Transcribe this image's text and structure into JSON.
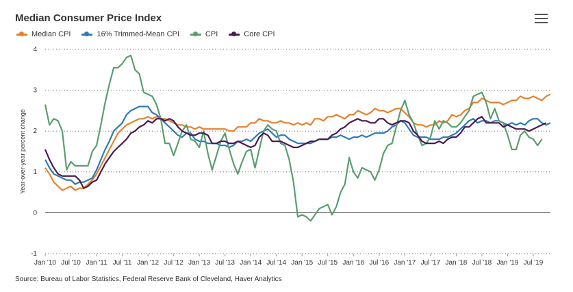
{
  "header": {
    "title": "Median Consumer Price Index"
  },
  "menu_icon": "hamburger-menu-icon",
  "source": "Source: Bureau of Labor Statistics, Federal Reserve Bank of Cleveland, Haver Analytics",
  "chart_data": {
    "type": "line",
    "title": "Median Consumer Price Index",
    "xlabel": "",
    "ylabel": "Year-over-year percent change",
    "ylim": [
      -1,
      4
    ],
    "yticks": [
      -1,
      0,
      1,
      2,
      3,
      4
    ],
    "xtick_labels": [
      "Jan '10",
      "Jul '10",
      "Jan '11",
      "Jul '11",
      "Jan '12",
      "Jul '12",
      "Jan '13",
      "Jul '13",
      "Jan '14",
      "Jul '14",
      "Jan '15",
      "Jul '15",
      "Jan '16",
      "Jul '16",
      "Jan '17",
      "Jul '17",
      "Jan '18",
      "Jul '18",
      "Jan '19",
      "Jul '19"
    ],
    "x_start": "2010-01",
    "grid": "horizontal-dotted",
    "legend_position": "top-left",
    "series": [
      {
        "name": "Median CPI",
        "color": "#e8802a",
        "values": [
          1.1,
          0.95,
          0.75,
          0.65,
          0.55,
          0.6,
          0.65,
          0.55,
          0.6,
          0.6,
          0.7,
          0.8,
          0.95,
          1.15,
          1.35,
          1.55,
          1.75,
          1.95,
          2.05,
          2.15,
          2.2,
          2.25,
          2.3,
          2.3,
          2.35,
          2.3,
          2.35,
          2.3,
          2.3,
          2.25,
          2.2,
          2.15,
          2.15,
          2.1,
          2.1,
          2.05,
          2.1,
          2.05,
          2.05,
          2.05,
          2.05,
          2.05,
          2.05,
          2.0,
          2.0,
          2.1,
          2.1,
          2.1,
          2.2,
          2.2,
          2.3,
          2.25,
          2.25,
          2.2,
          2.2,
          2.25,
          2.2,
          2.2,
          2.15,
          2.2,
          2.15,
          2.2,
          2.15,
          2.3,
          2.3,
          2.25,
          2.35,
          2.35,
          2.4,
          2.35,
          2.3,
          2.4,
          2.4,
          2.5,
          2.45,
          2.4,
          2.45,
          2.55,
          2.5,
          2.5,
          2.45,
          2.5,
          2.55,
          2.55,
          2.45,
          2.35,
          2.2,
          2.15,
          2.15,
          2.1,
          2.15,
          2.15,
          2.25,
          2.2,
          2.25,
          2.4,
          2.35,
          2.4,
          2.5,
          2.55,
          2.7,
          2.7,
          2.8,
          2.75,
          2.7,
          2.7,
          2.7,
          2.65,
          2.7,
          2.75,
          2.75,
          2.85,
          2.8,
          2.8,
          2.85,
          2.8,
          2.75,
          2.85,
          2.9
        ]
      },
      {
        "name": "16% Trimmed-Mean CPI",
        "color": "#2b7bb9",
        "values": [
          1.3,
          1.1,
          0.95,
          0.9,
          0.85,
          0.8,
          0.8,
          0.7,
          0.75,
          0.75,
          0.8,
          0.85,
          1.05,
          1.3,
          1.55,
          1.75,
          2.0,
          2.1,
          2.2,
          2.4,
          2.5,
          2.55,
          2.6,
          2.6,
          2.6,
          2.45,
          2.4,
          2.3,
          2.2,
          2.1,
          2.0,
          1.9,
          1.85,
          1.95,
          1.95,
          1.8,
          1.75,
          1.75,
          1.7,
          1.7,
          1.7,
          1.65,
          1.65,
          1.6,
          1.65,
          1.75,
          1.75,
          1.8,
          1.75,
          1.85,
          1.95,
          2.0,
          2.05,
          1.95,
          1.85,
          1.9,
          1.9,
          1.8,
          1.75,
          1.7,
          1.7,
          1.7,
          1.7,
          1.75,
          1.8,
          1.8,
          1.8,
          1.85,
          1.85,
          1.9,
          1.85,
          1.8,
          1.85,
          1.85,
          1.9,
          1.85,
          1.9,
          1.95,
          1.95,
          1.95,
          2.0,
          2.1,
          2.15,
          2.25,
          2.2,
          2.05,
          1.9,
          1.85,
          1.85,
          1.85,
          1.8,
          1.8,
          1.8,
          1.85,
          1.85,
          1.9,
          1.95,
          2.05,
          2.15,
          2.25,
          2.3,
          2.2,
          2.25,
          2.25,
          2.2,
          2.25,
          2.25,
          2.2,
          2.15,
          2.2,
          2.15,
          2.2,
          2.15,
          2.25,
          2.3,
          2.3,
          2.2,
          2.15,
          2.2
        ]
      },
      {
        "name": "CPI",
        "color": "#5a9e6f",
        "values": [
          2.65,
          2.15,
          2.3,
          2.25,
          2.0,
          1.05,
          1.25,
          1.15,
          1.15,
          1.15,
          1.15,
          1.5,
          1.65,
          2.15,
          2.7,
          3.15,
          3.55,
          3.55,
          3.65,
          3.8,
          3.85,
          3.5,
          3.4,
          2.95,
          2.9,
          2.85,
          2.65,
          2.3,
          1.7,
          1.7,
          1.4,
          1.7,
          2.0,
          2.15,
          1.8,
          1.75,
          1.6,
          2.0,
          1.45,
          1.05,
          1.4,
          1.75,
          1.95,
          1.55,
          1.2,
          0.95,
          1.25,
          1.5,
          1.55,
          1.1,
          1.55,
          2.0,
          2.15,
          2.05,
          2.0,
          1.7,
          1.65,
          1.3,
          0.75,
          -0.1,
          -0.05,
          -0.1,
          -0.2,
          -0.05,
          0.1,
          0.15,
          0.2,
          -0.05,
          0.15,
          0.5,
          0.7,
          1.35,
          1.0,
          0.85,
          1.1,
          1.05,
          1.0,
          0.8,
          1.05,
          1.45,
          1.65,
          1.7,
          2.1,
          2.5,
          2.75,
          2.4,
          2.2,
          1.9,
          1.65,
          1.7,
          1.85,
          2.25,
          2.05,
          2.25,
          2.2,
          2.1,
          2.1,
          2.2,
          2.35,
          2.5,
          2.85,
          2.9,
          2.95,
          2.7,
          2.3,
          2.55,
          2.25,
          2.2,
          1.9,
          1.55,
          1.55,
          1.9,
          2.0,
          1.85,
          1.8,
          1.65,
          1.8
        ]
      },
      {
        "name": "Core CPI",
        "color": "#4a1a4f",
        "values": [
          1.55,
          1.3,
          1.1,
          0.95,
          0.9,
          0.9,
          0.9,
          0.9,
          0.8,
          0.6,
          0.65,
          0.75,
          0.8,
          1.0,
          1.2,
          1.35,
          1.5,
          1.6,
          1.7,
          1.8,
          1.95,
          2.0,
          2.1,
          2.15,
          2.25,
          2.2,
          2.3,
          2.3,
          2.25,
          2.3,
          2.25,
          2.1,
          2.0,
          1.95,
          1.9,
          1.9,
          1.95,
          1.95,
          1.9,
          1.7,
          1.7,
          1.75,
          1.75,
          1.7,
          1.7,
          1.75,
          1.7,
          1.65,
          1.6,
          1.65,
          1.85,
          1.95,
          1.9,
          1.75,
          1.75,
          1.75,
          1.7,
          1.65,
          1.6,
          1.6,
          1.65,
          1.7,
          1.75,
          1.75,
          1.8,
          1.8,
          1.8,
          1.9,
          1.95,
          2.05,
          2.1,
          2.2,
          2.25,
          2.3,
          2.25,
          2.25,
          2.2,
          2.2,
          2.3,
          2.3,
          2.2,
          2.15,
          2.2,
          2.25,
          2.25,
          2.2,
          2.0,
          1.9,
          1.75,
          1.7,
          1.7,
          1.7,
          1.75,
          1.7,
          1.8,
          1.85,
          1.85,
          1.95,
          2.1,
          2.1,
          2.2,
          2.3,
          2.35,
          2.2,
          2.2,
          2.2,
          2.2,
          2.1,
          2.15,
          2.1,
          2.05,
          2.05,
          2.05,
          2.0,
          2.05,
          2.1,
          2.15,
          2.2
        ]
      }
    ]
  }
}
